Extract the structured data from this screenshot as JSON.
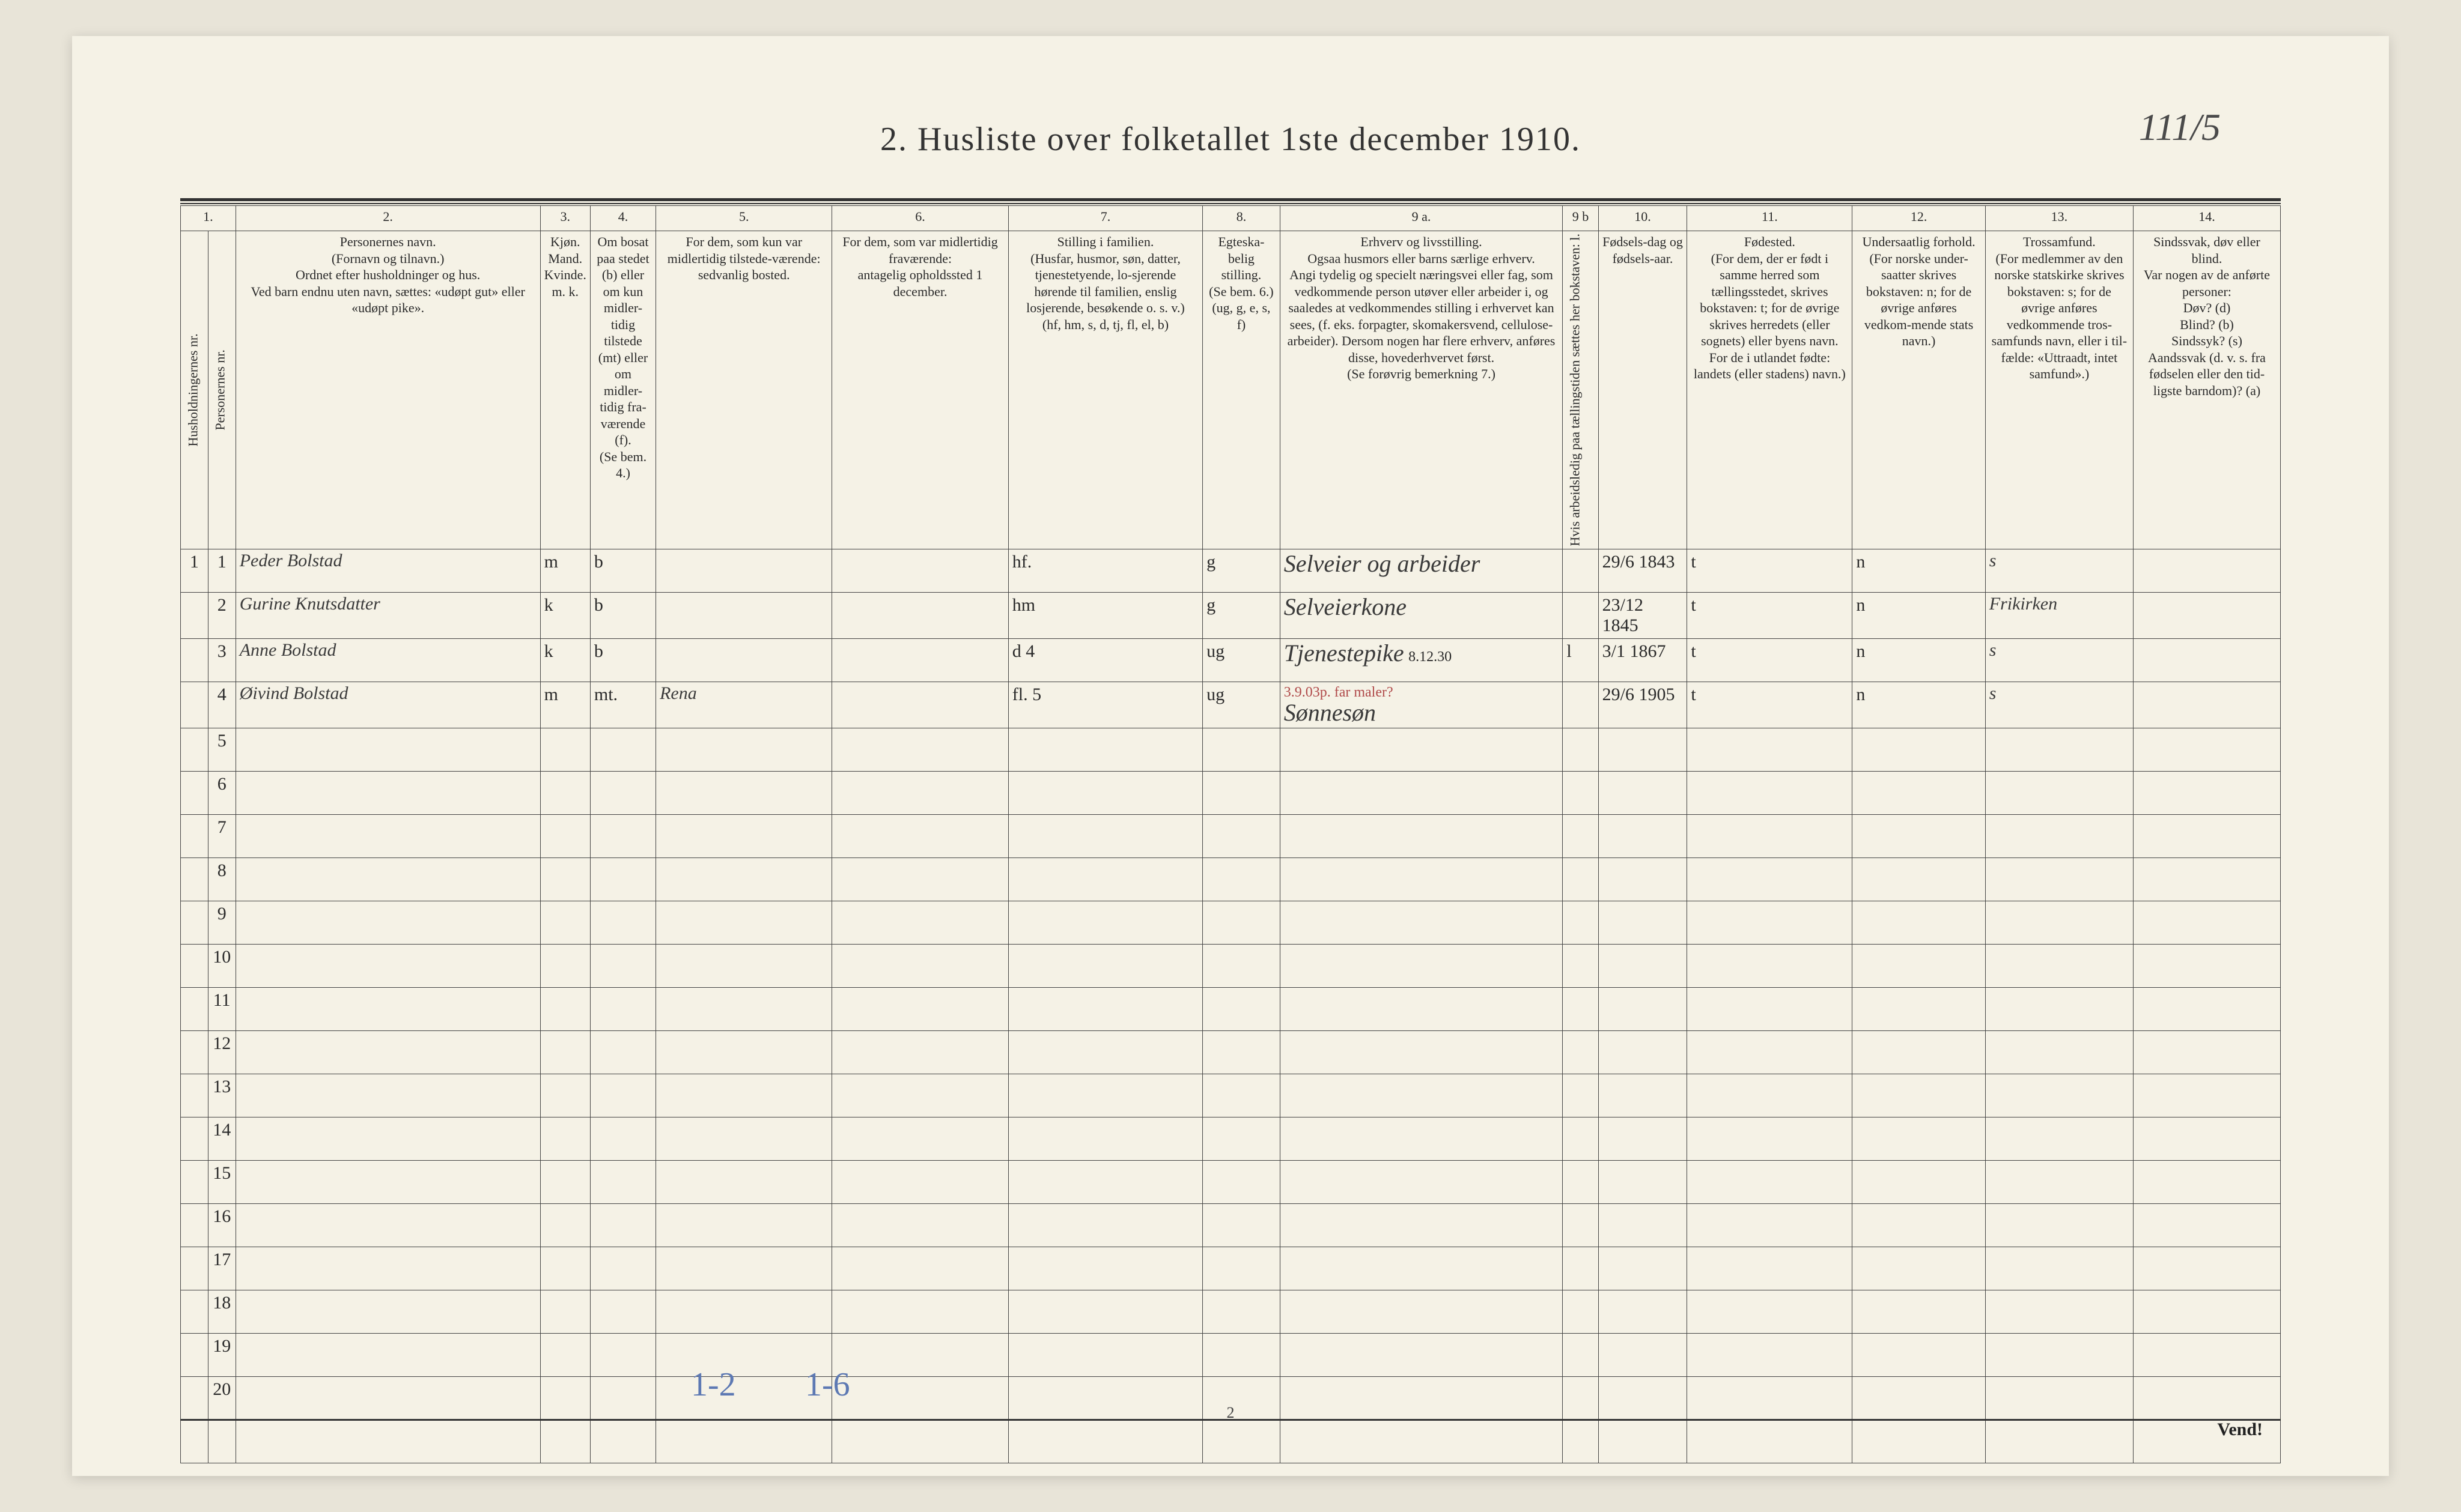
{
  "corner_note": "111/5",
  "title": "2.   Husliste over folketallet 1ste december 1910.",
  "colnums": [
    "1.",
    "2.",
    "3.",
    "4.",
    "5.",
    "6.",
    "7.",
    "8.",
    "9 a.",
    "9 b",
    "10.",
    "11.",
    "12.",
    "13.",
    "14."
  ],
  "headers": {
    "hh": "Husholdningernes nr.",
    "pn": "Personernes nr.",
    "name": "Personernes navn.\n(Fornavn og tilnavn.)\nOrdnet efter husholdninger og hus.\nVed barn endnu uten navn, sættes: «udøpt gut» eller «udøpt pike».",
    "mk": "Kjøn.\nMand.\nKvinde.\nm.  k.",
    "bosat": "Om bosat paa stedet (b) eller om kun midler-tidig tilstede (mt) eller om midler-tidig fra-værende (f).\n(Se bem. 4.)",
    "tmp": "For dem, som kun var midlertidig tilstede-værende:\nsedvanlig bosted.",
    "abs": "For dem, som var midlertidig fraværende:\nantagelig opholdssted 1 december.",
    "fam": "Stilling i familien.\n(Husfar, husmor, søn, datter, tjenestetyende, lo-sjerende hørende til familien, enslig losjerende, besøkende o. s. v.)\n(hf, hm, s, d, tj, fl, el, b)",
    "civ": "Egteska-belig stilling.\n(Se bem. 6.)\n(ug, g, e, s, f)",
    "occ": "Erhverv og livsstilling.\nOgsaa husmors eller barns særlige erhverv.\nAngi tydelig og specielt næringsvei eller fag, som vedkommende person utøver eller arbeider i, og saaledes at vedkommendes stilling i erhvervet kan sees, (f. eks. forpagter, skomakersvend, cellulose-arbeider). Dersom nogen har flere erhverv, anføres disse, hovederhvervet først.\n(Se forøvrig bemerkning 7.)",
    "c9b": "Hvis arbeidsledig paa tællingstiden sættes her bokstaven: l.",
    "bd": "Fødsels-dag og fødsels-aar.",
    "bp": "Fødested.\n(For dem, der er født i samme herred som tællingsstedet, skrives bokstaven: t; for de øvrige skrives herredets (eller sognets) eller byens navn.\nFor de i utlandet fødte: landets (eller stadens) navn.)",
    "nat": "Undersaatlig forhold.\n(For norske under-saatter skrives bokstaven: n; for de øvrige anføres vedkom-mende stats navn.)",
    "rel": "Trossamfund.\n(For medlemmer av den norske statskirke skrives bokstaven: s; for de øvrige anføres vedkommende tros-samfunds navn, eller i til-fælde: «Uttraadt, intet samfund».)",
    "dis": "Sindssvak, døv eller blind.\nVar nogen av de anførte personer:\nDøv?      (d)\nBlind?    (b)\nSindssyk? (s)\nAandssvak (d. v. s. fra fødselen eller den tid-ligste barndom)?  (a)"
  },
  "rows": [
    {
      "hh": "1",
      "pn": "1",
      "name": "Peder Bolstad",
      "mk": "m",
      "bosat": "b",
      "tmp": "",
      "abs": "",
      "fam": "hf.",
      "civ": "g",
      "occ": "Selveier og arbeider",
      "c9b": "",
      "bd": "29/6 1843",
      "bp": "t",
      "nat": "n",
      "rel": "s",
      "dis": ""
    },
    {
      "hh": "",
      "pn": "2",
      "name": "Gurine Knutsdatter",
      "mk": "k",
      "bosat": "b",
      "tmp": "",
      "abs": "",
      "fam": "hm",
      "civ": "g",
      "occ": "Selveierkone",
      "c9b": "",
      "bd": "23/12 1845",
      "bp": "t",
      "nat": "n",
      "rel": "Frikirken",
      "dis": ""
    },
    {
      "hh": "",
      "pn": "3",
      "name": "Anne Bolstad",
      "mk": "k",
      "bosat": "b",
      "tmp": "",
      "abs": "",
      "fam": "d        4",
      "civ": "ug",
      "occ": "Tjenestepike",
      "occ_note": "8.12.30",
      "c9b": "l",
      "bd": "3/1 1867",
      "bp": "t",
      "nat": "n",
      "rel": "s",
      "dis": ""
    },
    {
      "hh": "",
      "pn": "4",
      "name": "Øivind Bolstad",
      "mk": "m",
      "bosat": "mt.",
      "tmp": "Rena",
      "abs": "",
      "fam": "fl.       5",
      "civ": "ug",
      "occ": "Sønnesøn",
      "occ_note_above": "3.9.03p.   far  maler?",
      "c9b": "",
      "bd": "29/6 1905",
      "bp": "t",
      "nat": "n",
      "rel": "s",
      "dis": ""
    }
  ],
  "blank_row_nums": [
    "5",
    "6",
    "7",
    "8",
    "9",
    "10",
    "11",
    "12",
    "13",
    "14",
    "15",
    "16",
    "17",
    "18",
    "19",
    "20"
  ],
  "blue_notes": {
    "a": "1-2",
    "b": "1-6"
  },
  "footer_page": "2",
  "vend": "Vend!"
}
